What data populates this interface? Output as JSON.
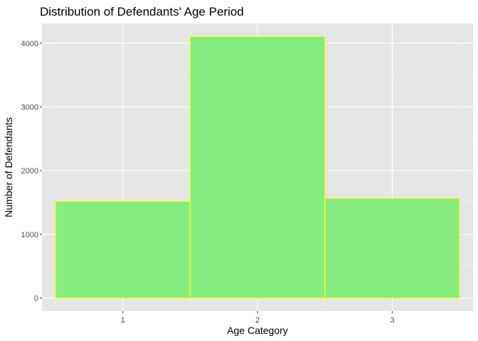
{
  "chart_data": {
    "type": "bar",
    "title": "Distribution of Defendants' Age Period",
    "xlabel": "Age Category",
    "ylabel": "Number of Defendants",
    "categories": [
      "1",
      "2",
      "3"
    ],
    "values": [
      1520,
      4105,
      1565
    ],
    "ylim": [
      -205,
      4310
    ],
    "yticks": [
      0,
      1000,
      2000,
      3000,
      4000
    ],
    "ytick_labels": [
      "0",
      "1000",
      "2000",
      "3000",
      "4000"
    ],
    "grid": true,
    "legend": "none",
    "colors": {
      "bar_fill": "#85ed80",
      "bar_outline": "#ffff00",
      "panel_background": "#e5e5e5",
      "grid_major": "#ffffff",
      "grid_minor": "#f2f2f2",
      "tick_text": "#4d4d4d"
    }
  }
}
